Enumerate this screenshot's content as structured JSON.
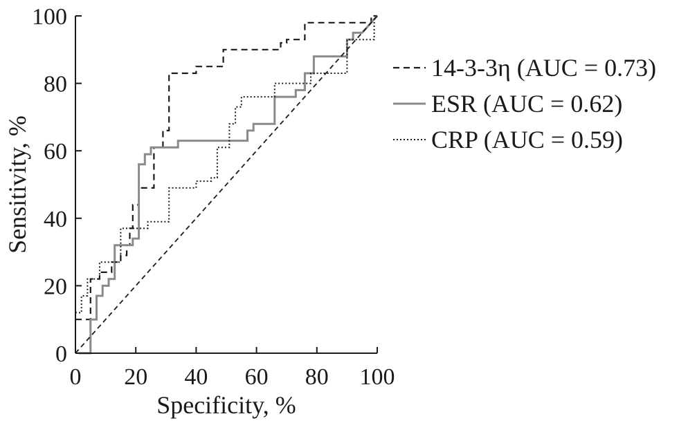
{
  "chart_data": {
    "type": "line",
    "title": "",
    "xlabel": "Specificity, %",
    "ylabel": "Sensitivity, %",
    "xlim": [
      0,
      100
    ],
    "ylim": [
      0,
      100
    ],
    "xticks": [
      "0",
      "20",
      "40",
      "60",
      "80",
      "100"
    ],
    "yticks": [
      "0",
      "20",
      "40",
      "60",
      "80",
      "100"
    ],
    "grid": false,
    "legend_position": "right",
    "series": [
      {
        "name": "14-3-3η (AUC = 0.73)",
        "style": "dashed",
        "color": "#1a1a1a",
        "x": [
          0,
          5,
          5,
          8,
          8,
          12,
          12,
          15,
          15,
          17,
          17,
          18,
          18,
          19,
          19,
          21,
          21,
          26,
          26,
          29,
          29,
          31,
          31,
          37,
          37,
          40,
          40,
          49,
          49,
          60,
          60,
          68,
          68,
          70,
          70,
          76,
          76,
          98,
          98,
          100
        ],
        "y": [
          10,
          10,
          22,
          22,
          24,
          24,
          27,
          27,
          29,
          29,
          32,
          32,
          37,
          37,
          44,
          44,
          49,
          49,
          61,
          61,
          66,
          66,
          83,
          83,
          83,
          83,
          85,
          85,
          90,
          90,
          90,
          90,
          92,
          92,
          93,
          93,
          98,
          98,
          100,
          100
        ]
      },
      {
        "name": "ESR (AUC = 0.62)",
        "style": "solid",
        "color": "#8a8a8a",
        "x": [
          1,
          5,
          5,
          7,
          7,
          9,
          9,
          11,
          11,
          13,
          13,
          19,
          19,
          21,
          21,
          23,
          23,
          25,
          25,
          27,
          27,
          34,
          34,
          55,
          55,
          57,
          57,
          59,
          59,
          66,
          66,
          73,
          73,
          76,
          76,
          79,
          79,
          89,
          89,
          90,
          90,
          92,
          92,
          95,
          95,
          100
        ],
        "y": [
          0,
          0,
          10,
          10,
          17,
          17,
          20,
          20,
          22,
          22,
          32,
          32,
          34,
          34,
          56,
          56,
          59,
          59,
          61,
          61,
          61,
          61,
          63,
          63,
          63,
          63,
          66,
          66,
          68,
          68,
          76,
          76,
          78,
          78,
          83,
          83,
          88,
          88,
          88,
          88,
          93,
          93,
          95,
          95,
          95,
          100
        ]
      },
      {
        "name": "CRP (AUC = 0.59)",
        "style": "dotted",
        "color": "#1a1a1a",
        "x": [
          0,
          2,
          2,
          4,
          4,
          8,
          8,
          15,
          15,
          20,
          20,
          24,
          24,
          25,
          25,
          31,
          31,
          39,
          39,
          40,
          40,
          45,
          45,
          47,
          47,
          51,
          51,
          53,
          53,
          55,
          55,
          65,
          65,
          66,
          66,
          78,
          78,
          90,
          90,
          99,
          99,
          100
        ],
        "y": [
          12,
          12,
          17,
          17,
          22,
          22,
          27,
          27,
          37,
          37,
          37,
          37,
          39,
          39,
          39,
          39,
          49,
          49,
          49,
          49,
          51,
          51,
          52,
          52,
          61,
          61,
          68,
          68,
          73,
          73,
          76,
          76,
          76,
          76,
          80,
          80,
          83,
          83,
          93,
          93,
          100,
          100
        ]
      },
      {
        "name": "",
        "style": "reference-diagonal",
        "color": "#1a1a1a",
        "x": [
          0,
          100
        ],
        "y": [
          0,
          100
        ]
      }
    ]
  }
}
